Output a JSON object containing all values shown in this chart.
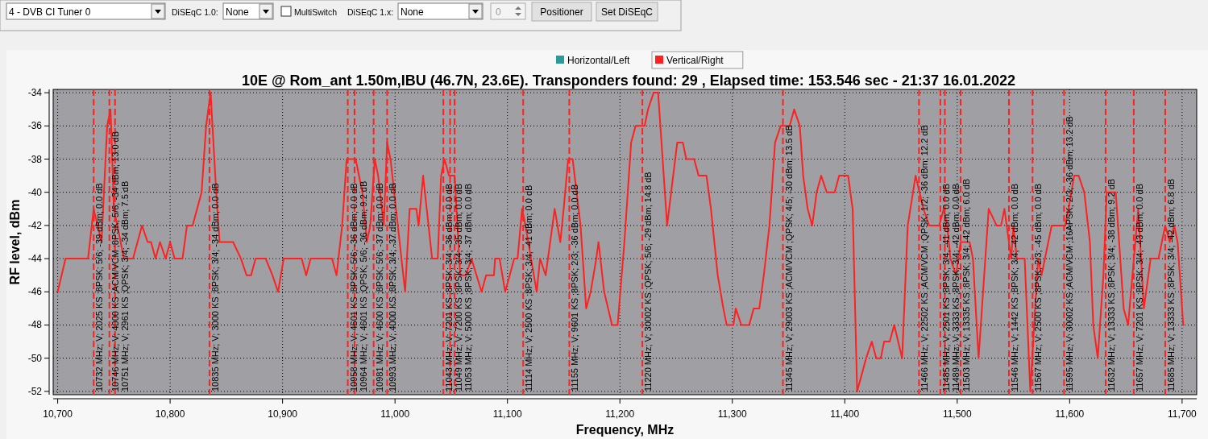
{
  "chart_data": [
    {
      "type": "other",
      "annotations": [
        "4 - DVB CI Tuner 0",
        "DiSEqC 1.0:",
        "None",
        "MultiSwitch",
        "DiSEqC 1.x:",
        "None",
        "0",
        "Positioner",
        "Set DiSEqC"
      ]
    },
    {
      "type": "line",
      "title": "10E @ Rom_ant 1.50m,IBU (46.7N, 23.6E). Transponders found: 29 , Elapsed time: 153.546 sec - 21:37 16.01.2022",
      "xlabel": "Frequency, MHz",
      "ylabel": "RF level, dBm",
      "x": [
        10700,
        10707,
        10727,
        10732,
        10739,
        10744,
        10747,
        10750,
        10759,
        10767,
        10775,
        10780,
        10783,
        10787,
        10791,
        10796,
        10800,
        10804,
        10811,
        10815,
        10820,
        10828,
        10832,
        10836,
        10841,
        10844,
        10856,
        10863,
        10868,
        10872,
        10876,
        10885,
        10891,
        10896,
        10901,
        10917,
        10921,
        10925,
        10944,
        10948,
        10953,
        10957,
        10965,
        10971,
        10975,
        10978,
        10982,
        10985,
        10990,
        10993,
        10996,
        11009,
        11013,
        11019,
        11021,
        11025,
        11033,
        11038,
        11041,
        11044,
        11048,
        11053,
        11058,
        11063,
        11068,
        11077,
        11081,
        11088,
        11089,
        11093,
        11098,
        11102,
        11106,
        11109,
        11113,
        11116,
        11126,
        11129,
        11134,
        11142,
        11147,
        11150,
        11154,
        11158,
        11165,
        11170,
        11174,
        11179,
        11181,
        11186,
        11193,
        11198,
        11204,
        11210,
        11214,
        11222,
        11225,
        11230,
        11234,
        11242,
        11251,
        11256,
        11259,
        11266,
        11270,
        11277,
        11281,
        11287,
        11292,
        11295,
        11301,
        11303,
        11308,
        11315,
        11319,
        11324,
        11328,
        11333,
        11338,
        11343,
        11351,
        11355,
        11360,
        11363,
        11367,
        11371,
        11375,
        11379,
        11384,
        11391,
        11395,
        11403,
        11407,
        11411,
        11419,
        11424,
        11428,
        11432,
        11435,
        11440,
        11444,
        11451,
        11456,
        11463,
        11470,
        11475,
        11484,
        11488,
        11491,
        11494,
        11499,
        11503,
        11511,
        11514,
        11519,
        11528,
        11535,
        11539,
        11542,
        11544,
        11548,
        11550,
        11553,
        11560,
        11565,
        11571,
        11572,
        11575,
        11584,
        11596,
        11599,
        11604,
        11608,
        11613,
        11618,
        11621,
        11625,
        11630,
        11633,
        11641,
        11648,
        11652,
        11661,
        11666,
        11672,
        11679,
        11685,
        11689,
        11693,
        11696,
        11701
      ],
      "series": [
        {
          "name": "Horizontal/Left",
          "color": "#2a9a9a",
          "values": [
            null,
            null,
            null,
            null,
            null,
            null,
            null,
            null,
            null,
            null,
            null,
            null,
            null,
            null,
            null,
            null,
            null,
            null,
            null,
            null,
            null,
            null,
            null,
            null,
            null,
            null,
            null,
            null,
            null,
            null,
            null,
            null,
            null,
            null,
            null,
            null,
            null,
            null,
            null,
            null,
            null,
            null,
            null,
            null,
            null,
            null,
            null,
            null,
            null,
            null,
            null,
            null,
            null,
            null,
            null,
            null,
            null,
            null,
            null,
            null,
            null,
            null,
            null,
            null,
            null,
            null,
            null,
            null,
            null,
            null,
            null,
            null,
            null,
            null,
            null,
            null,
            null,
            null,
            null,
            null,
            null,
            null,
            null,
            null,
            null,
            null,
            null,
            null,
            null,
            null,
            null,
            null,
            null,
            null,
            null,
            null,
            null,
            null,
            null,
            null,
            null,
            null,
            null,
            null,
            null,
            null,
            null,
            null,
            null,
            null,
            null,
            null,
            null,
            null,
            null,
            null,
            null,
            null,
            null,
            null,
            null,
            null,
            null,
            null,
            null,
            null,
            null,
            null,
            null,
            null,
            null,
            null,
            null,
            null,
            null,
            null,
            null,
            null,
            null,
            null,
            null,
            null,
            null,
            null,
            null,
            null,
            null,
            null,
            null,
            null,
            null,
            null,
            null,
            null,
            null,
            null,
            null,
            null,
            null,
            null,
            null,
            null,
            null,
            null,
            null,
            null,
            null,
            null,
            null,
            null,
            null,
            null,
            null,
            null,
            null,
            null,
            null,
            null,
            null,
            null,
            null,
            null,
            null,
            null,
            null,
            null,
            null,
            null,
            null,
            null,
            null
          ]
        },
        {
          "name": "Vertical/Right",
          "color": "#ff2020",
          "values": [
            -46,
            -44,
            -44,
            -41,
            -43,
            -36,
            -35,
            -41,
            -44,
            -44,
            -42,
            -43,
            -43,
            -44,
            -43,
            -44,
            -43,
            -44,
            -44,
            -42,
            -42,
            -40,
            -36,
            -34,
            -40,
            -43,
            -43,
            -44,
            -45,
            -45,
            -44,
            -44,
            -45,
            -46,
            -44,
            -44,
            -45,
            -44,
            -44,
            -45,
            -42,
            -38,
            -38,
            -40,
            -43,
            -42,
            -38,
            -39,
            -42,
            -37,
            -38,
            -46,
            -41,
            -41,
            -42,
            -39,
            -44,
            -44,
            -39,
            -38,
            -39,
            -39,
            -45,
            -45,
            -44,
            -46,
            -45,
            -45,
            -44,
            -44,
            -46,
            -45,
            -44,
            -44,
            -41,
            -42,
            -46,
            -44,
            -45,
            -41,
            -43,
            -41,
            -38,
            -38,
            -42,
            -47,
            -46,
            -44,
            -43,
            -46,
            -48,
            -48,
            -43,
            -37,
            -36,
            -36,
            -35,
            -34,
            -34,
            -42,
            -37,
            -37,
            -38,
            -38,
            -39,
            -39,
            -41,
            -45,
            -47,
            -48,
            -48,
            -47,
            -48,
            -48,
            -47,
            -47,
            -45,
            -42,
            -37,
            -36,
            -36,
            -35,
            -36,
            -39,
            -41,
            -42,
            -40,
            -39,
            -40,
            -40,
            -39,
            -39,
            -41,
            -52,
            -50,
            -49,
            -50,
            -50,
            -49,
            -49,
            -48,
            -50,
            -42,
            -39,
            -41,
            -42,
            -42,
            -41,
            -42,
            -44,
            -45,
            -43,
            -43,
            -44,
            -50,
            -41,
            -42,
            -42,
            -41,
            -42,
            -44,
            -42,
            -44,
            -44,
            -52,
            -45,
            -44,
            -45,
            -42,
            -42,
            -41,
            -39,
            -39,
            -40,
            -43,
            -48,
            -50,
            -45,
            -40,
            -40,
            -47,
            -48,
            -41,
            -47,
            -44,
            -44,
            -42,
            -43,
            -42,
            -43,
            -48
          ]
        }
      ],
      "xlim": [
        10696,
        11713
      ],
      "ylim": [
        -52.2,
        -33.8
      ],
      "xticks": [
        {
          "value": 10700,
          "label": "10,700"
        },
        {
          "value": 10800,
          "label": "10,800"
        },
        {
          "value": 10900,
          "label": "10,900"
        },
        {
          "value": 11000,
          "label": "11,000"
        },
        {
          "value": 11100,
          "label": "11,100"
        },
        {
          "value": 11200,
          "label": "11,200"
        },
        {
          "value": 11300,
          "label": "11,300"
        },
        {
          "value": 11400,
          "label": "11,400"
        },
        {
          "value": 11500,
          "label": "11,500"
        },
        {
          "value": 11600,
          "label": "11,600"
        },
        {
          "value": 11700,
          "label": "11,700"
        }
      ],
      "yticks": [
        -34,
        -36,
        -38,
        -40,
        -42,
        -44,
        -46,
        -48,
        -50,
        -52
      ],
      "grid": true,
      "legend": "top right",
      "ref_lines": [
        {
          "axis": "x",
          "value": 10732,
          "label": "10732 MHz; V; 2025 KS ;8PSK; 5/6; -39 dBm; 0.0 dB",
          "color": "#ff2020",
          "line_style": "dashed"
        },
        {
          "axis": "x",
          "value": 10746,
          "label": "10746 MHz; V; 4000 KS ;ACM/VCM ;8PSK; 5/6; -34 dBm; 13.0 dB",
          "color": "#ff2020",
          "line_style": "dashed"
        },
        {
          "axis": "x",
          "value": 10751,
          "label": "10751 MHz; V; 2961 KS ;QPSK; 3/4; -34 dBm; 7.5 dB",
          "color": "#ff2020",
          "line_style": "dashed"
        },
        {
          "axis": "x",
          "value": 10835,
          "label": "10835 MHz; V; 3000 KS ;8PSK; 3/4; -34 dBm; 0.0 dB",
          "color": "#ff2020",
          "line_style": "dashed"
        },
        {
          "axis": "x",
          "value": 10958,
          "label": "10958 MHz; V; 4601 KS ;8PSK; 5/6; -36 dBm; 0.0 dB",
          "color": "#ff2020",
          "line_style": "dashed"
        },
        {
          "axis": "x",
          "value": 10964,
          "label": "10964 MHz; V; 4601 KS ;QPSK; 5/6; -36 dBm; 9.2 dB",
          "color": "#ff2020",
          "line_style": "dashed"
        },
        {
          "axis": "x",
          "value": 10981,
          "label": "10981 MHz; V; 4600 KS ;8PSK; 5/6; -37 dBm; 0.0 dB",
          "color": "#ff2020",
          "line_style": "dashed"
        },
        {
          "axis": "x",
          "value": 10993,
          "label": "10993 MHz; V; 4000 KS ;8PSK; 3/4; -37 dBm; 0.0 dB",
          "color": "#ff2020",
          "line_style": "dashed"
        },
        {
          "axis": "x",
          "value": 11043,
          "label": "11043 MHz; V; 7201 KS ;8PSK; 3/4; -36 dBm; 0.0 dB",
          "color": "#ff2020",
          "line_style": "dashed"
        },
        {
          "axis": "x",
          "value": 11049,
          "label": "11049 MHz; V; 7200 KS ;8PSK; 3/4; -35 dBm; 0.0 dB",
          "color": "#ff2020",
          "line_style": "dashed"
        },
        {
          "axis": "x",
          "value": 11053,
          "label": "11053 MHz; V; 5000 KS ;8PSK; 3/4; -37 dBm; 0.0 dB",
          "color": "#ff2020",
          "line_style": "dashed"
        },
        {
          "axis": "x",
          "value": 11114,
          "label": "11114 MHz; V; 2500 KS ;8PSK; 3/4; -41 dBm; 0.0 dB",
          "color": "#ff2020",
          "line_style": "dashed"
        },
        {
          "axis": "x",
          "value": 11155,
          "label": "11155 MHz; V; 9601 KS ;8PSK; 2/3; -36 dBm; 0.0 dB",
          "color": "#ff2020",
          "line_style": "dashed"
        },
        {
          "axis": "x",
          "value": 11220,
          "label": "11220 MHz; V; 30002 KS ;QPSK; 5/6; -29 dBm; 14.8 dB",
          "color": "#ff2020",
          "line_style": "dashed"
        },
        {
          "axis": "x",
          "value": 11345,
          "label": "11345 MHz; V; 29003 KS ;ACM/VCM ;QPSK; 4/5; -30 dBm; 13.5 dB",
          "color": "#ff2020",
          "line_style": "dashed"
        },
        {
          "axis": "x",
          "value": 11466,
          "label": "11466 MHz; V; 22502 KS ;ACM/VCM ;QPSK; 1/2; -36 dBm; 12.2 dB",
          "color": "#ff2020",
          "line_style": "dashed"
        },
        {
          "axis": "x",
          "value": 11485,
          "label": "11485 MHz; V; 2501 KS ;8PSK; 3/4; -41 dBm; 0.0 dB",
          "color": "#ff2020",
          "line_style": "dashed"
        },
        {
          "axis": "x",
          "value": 11489,
          "label": "11489 MHz; V; 3333 KS ;8PSK; 3/4; -42 dBm; 0.0 dB",
          "color": "#ff2020",
          "line_style": "dashed"
        },
        {
          "axis": "x",
          "value": 11503,
          "label": "11503 MHz; V; 13335 KS ;8PSK; 3/4; -42 dBm; 6.0 dB",
          "color": "#ff2020",
          "line_style": "dashed"
        },
        {
          "axis": "x",
          "value": 11546,
          "label": "11546 MHz; V; 1442 KS ;8PSK; 3/4; -42 dBm; 0.0 dB",
          "color": "#ff2020",
          "line_style": "dashed"
        },
        {
          "axis": "x",
          "value": 11567,
          "label": "11567 MHz; V; 2500 KS ;8PSK; 2/3; -45 dBm; 0.0 dB",
          "color": "#ff2020",
          "line_style": "dashed"
        },
        {
          "axis": "x",
          "value": 11595,
          "label": "11595 MHz; V; 30002 KS ;ACM/VCM ;16APSK; 2/3; -36 dBm; 13.2 dB",
          "color": "#ff2020",
          "line_style": "dashed"
        },
        {
          "axis": "x",
          "value": 11632,
          "label": "11632 MHz; V; 13333 KS ;8PSK; 3/4; -38 dBm; 9.2 dB",
          "color": "#ff2020",
          "line_style": "dashed"
        },
        {
          "axis": "x",
          "value": 11657,
          "label": "11657 MHz; V; 7201 KS ;8PSK; 3/4; -43 dBm; 0.0 dB",
          "color": "#ff2020",
          "line_style": "dashed"
        },
        {
          "axis": "x",
          "value": 11685,
          "label": "11685 MHz; V; 13333 KS ;8PSK; 3/4; -42 dBm; 6.8 dB",
          "color": "#ff2020",
          "line_style": "dashed"
        }
      ]
    }
  ]
}
